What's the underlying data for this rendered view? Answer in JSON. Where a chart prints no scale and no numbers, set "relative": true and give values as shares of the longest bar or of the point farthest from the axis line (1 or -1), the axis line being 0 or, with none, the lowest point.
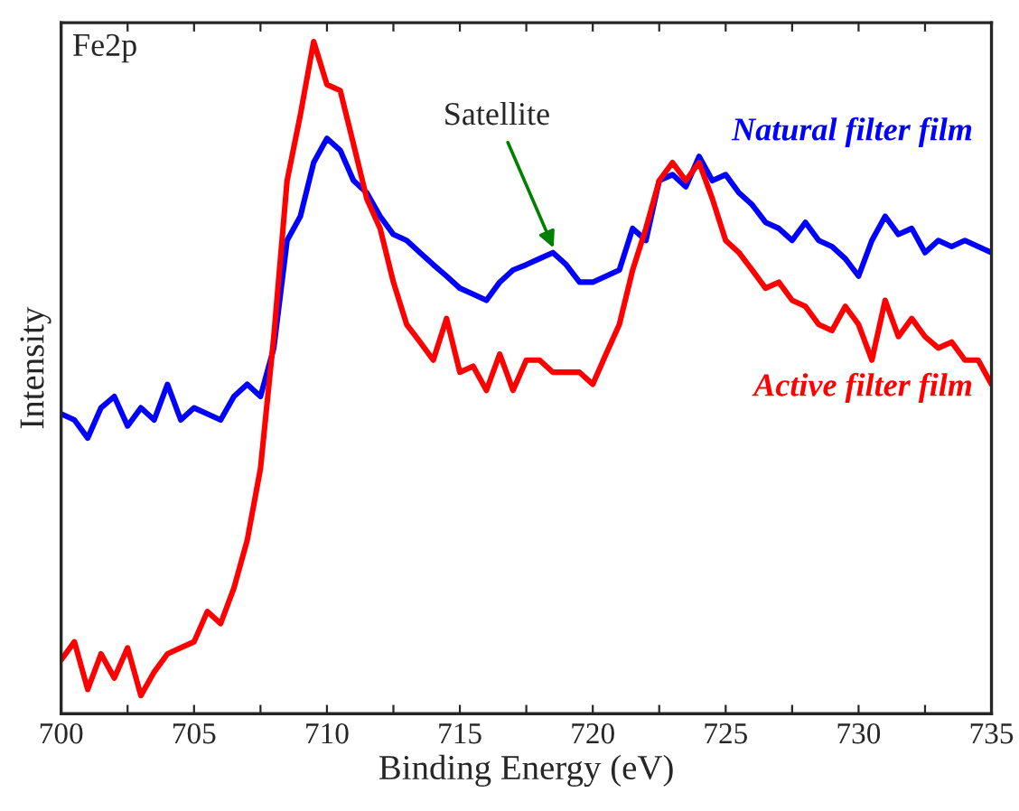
{
  "chart_data": {
    "type": "line",
    "relative": true,
    "xlabel": "Binding Energy (eV)",
    "ylabel": "Intensity",
    "x": [
      700,
      700.5,
      701,
      701.5,
      702,
      702.5,
      703,
      703.5,
      704,
      704.5,
      705,
      705.5,
      706,
      706.5,
      707,
      707.5,
      708,
      708.5,
      709,
      709.5,
      710,
      710.5,
      711,
      711.5,
      712,
      712.5,
      713,
      713.5,
      714,
      714.5,
      715,
      715.5,
      716,
      716.5,
      717,
      717.5,
      718,
      718.5,
      719,
      719.5,
      720,
      720.5,
      721,
      721.5,
      722,
      722.5,
      723,
      723.5,
      724,
      724.5,
      725,
      725.5,
      726,
      726.5,
      727,
      727.5,
      728,
      728.5,
      729,
      729.5,
      730,
      730.5,
      731,
      731.5,
      732,
      732.5,
      733,
      733.5,
      734,
      734.5,
      735
    ],
    "series": [
      {
        "name": "Natural filter film",
        "color": "#0000ff",
        "values": [
          0.446,
          0.437,
          0.41,
          0.455,
          0.472,
          0.428,
          0.455,
          0.437,
          0.49,
          0.437,
          0.455,
          0.446,
          0.437,
          0.472,
          0.49,
          0.472,
          0.544,
          0.704,
          0.74,
          0.82,
          0.856,
          0.838,
          0.793,
          0.775,
          0.74,
          0.713,
          0.704,
          0.686,
          0.668,
          0.651,
          0.633,
          0.624,
          0.615,
          0.642,
          0.66,
          0.668,
          0.677,
          0.686,
          0.668,
          0.642,
          0.642,
          0.651,
          0.66,
          0.722,
          0.704,
          0.793,
          0.802,
          0.784,
          0.829,
          0.793,
          0.802,
          0.775,
          0.757,
          0.731,
          0.722,
          0.704,
          0.731,
          0.704,
          0.695,
          0.677,
          0.651,
          0.704,
          0.74,
          0.713,
          0.722,
          0.686,
          0.704,
          0.695,
          0.704,
          0.695,
          0.686
        ]
      },
      {
        "name": "Active filter film",
        "color": "#ff0000",
        "values": [
          0.08,
          0.107,
          0.036,
          0.089,
          0.053,
          0.098,
          0.027,
          0.062,
          0.089,
          0.098,
          0.107,
          0.152,
          0.134,
          0.187,
          0.258,
          0.365,
          0.561,
          0.793,
          0.891,
          1,
          0.936,
          0.927,
          0.847,
          0.766,
          0.722,
          0.642,
          0.579,
          0.553,
          0.526,
          0.588,
          0.508,
          0.517,
          0.481,
          0.535,
          0.481,
          0.526,
          0.526,
          0.508,
          0.508,
          0.508,
          0.49,
          0.535,
          0.579,
          0.66,
          0.722,
          0.793,
          0.82,
          0.793,
          0.82,
          0.766,
          0.704,
          0.686,
          0.66,
          0.633,
          0.642,
          0.615,
          0.606,
          0.579,
          0.57,
          0.606,
          0.579,
          0.526,
          0.615,
          0.561,
          0.588,
          0.561,
          0.544,
          0.553,
          0.526,
          0.526,
          0.49
        ]
      }
    ],
    "xlim": [
      700,
      735
    ],
    "xticks": [
      700,
      {
        "value": 702.5,
        "label": null
      },
      705,
      {
        "value": 707.5,
        "label": null
      },
      710,
      {
        "value": 712.5,
        "label": null
      },
      715,
      {
        "value": 717.5,
        "label": null
      },
      720,
      {
        "value": 722.5,
        "label": null
      },
      725,
      {
        "value": 727.5,
        "label": null
      },
      730,
      {
        "value": 732.5,
        "label": null
      },
      735
    ],
    "annotations": [
      "Fe2p",
      {
        "text": "Satellite",
        "x": 718.6,
        "y": 0.686
      }
    ],
    "legend": false,
    "grid": false
  }
}
